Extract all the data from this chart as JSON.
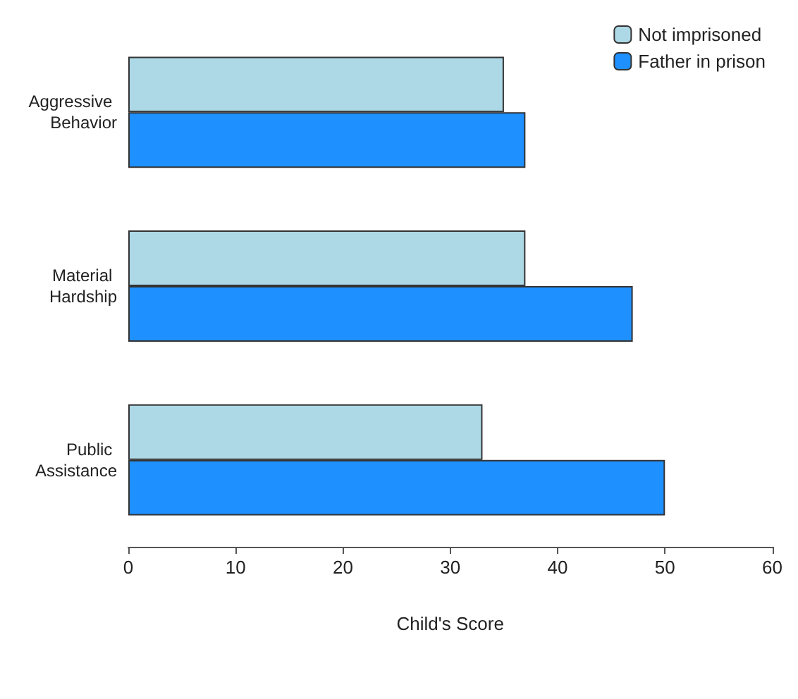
{
  "chart_data": {
    "type": "bar",
    "orientation": "horizontal",
    "categories": [
      "Aggressive Behavior",
      "Material Hardship",
      "Public Assistance"
    ],
    "series": [
      {
        "name": "Not imprisoned",
        "color": "#add8e6",
        "values": [
          35,
          37,
          33
        ]
      },
      {
        "name": "Father in prison",
        "color": "#1e90ff",
        "values": [
          37,
          47,
          50
        ]
      }
    ],
    "xlabel": "Child's Score",
    "xlim": [
      0,
      60
    ],
    "xticks": [
      0,
      10,
      20,
      30,
      40,
      50,
      60
    ],
    "grid": false,
    "legend": "top right"
  }
}
